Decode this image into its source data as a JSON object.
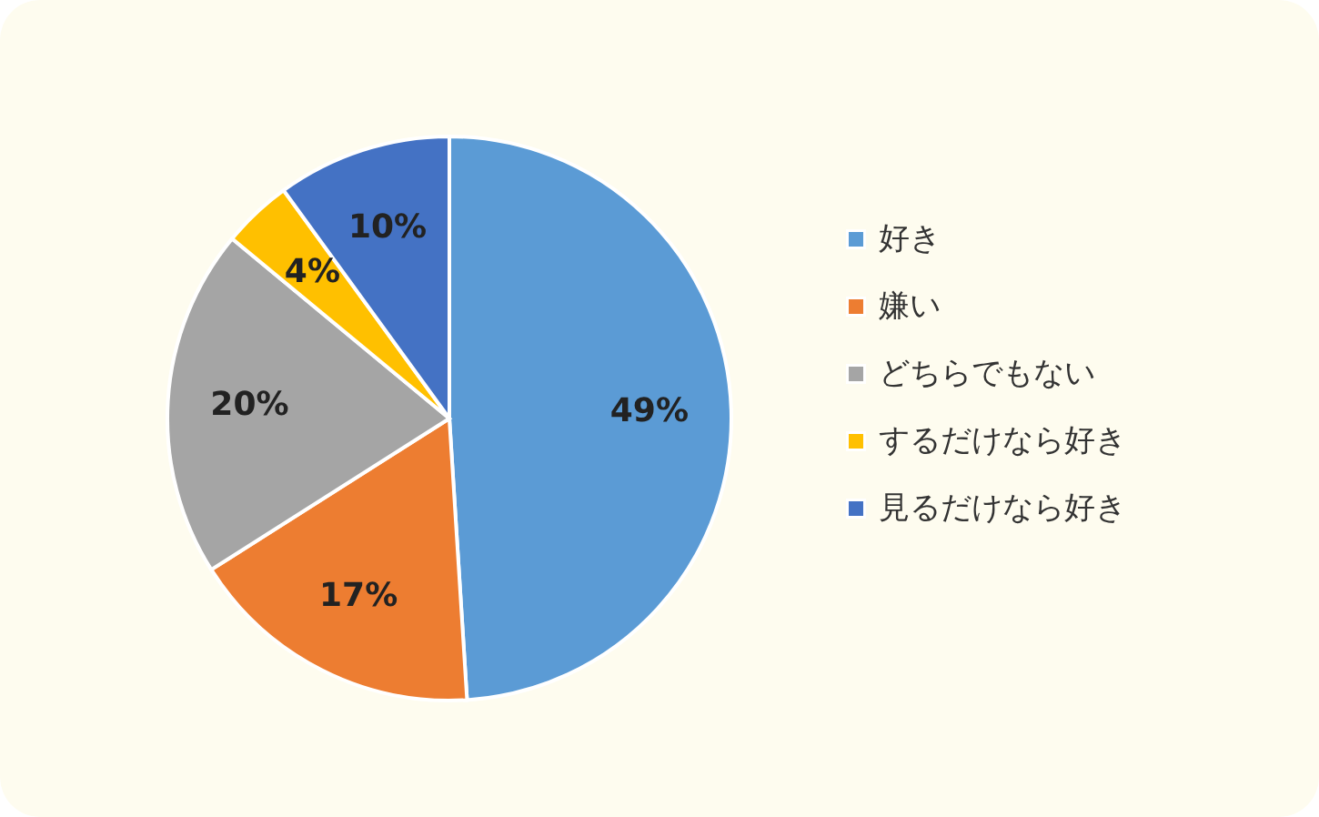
{
  "chart_data": {
    "type": "pie",
    "categories": [
      "好き",
      "嫌い",
      "どちらでもない",
      "するだけなら好き",
      "見るだけなら好き"
    ],
    "values": [
      49,
      17,
      20,
      4,
      10
    ],
    "colors": [
      "#5b9bd5",
      "#ed7d31",
      "#a5a5a5",
      "#ffc000",
      "#4472c4"
    ],
    "value_labels": [
      "49%",
      "17%",
      "20%",
      "4%",
      "10%"
    ],
    "legend": "right"
  }
}
